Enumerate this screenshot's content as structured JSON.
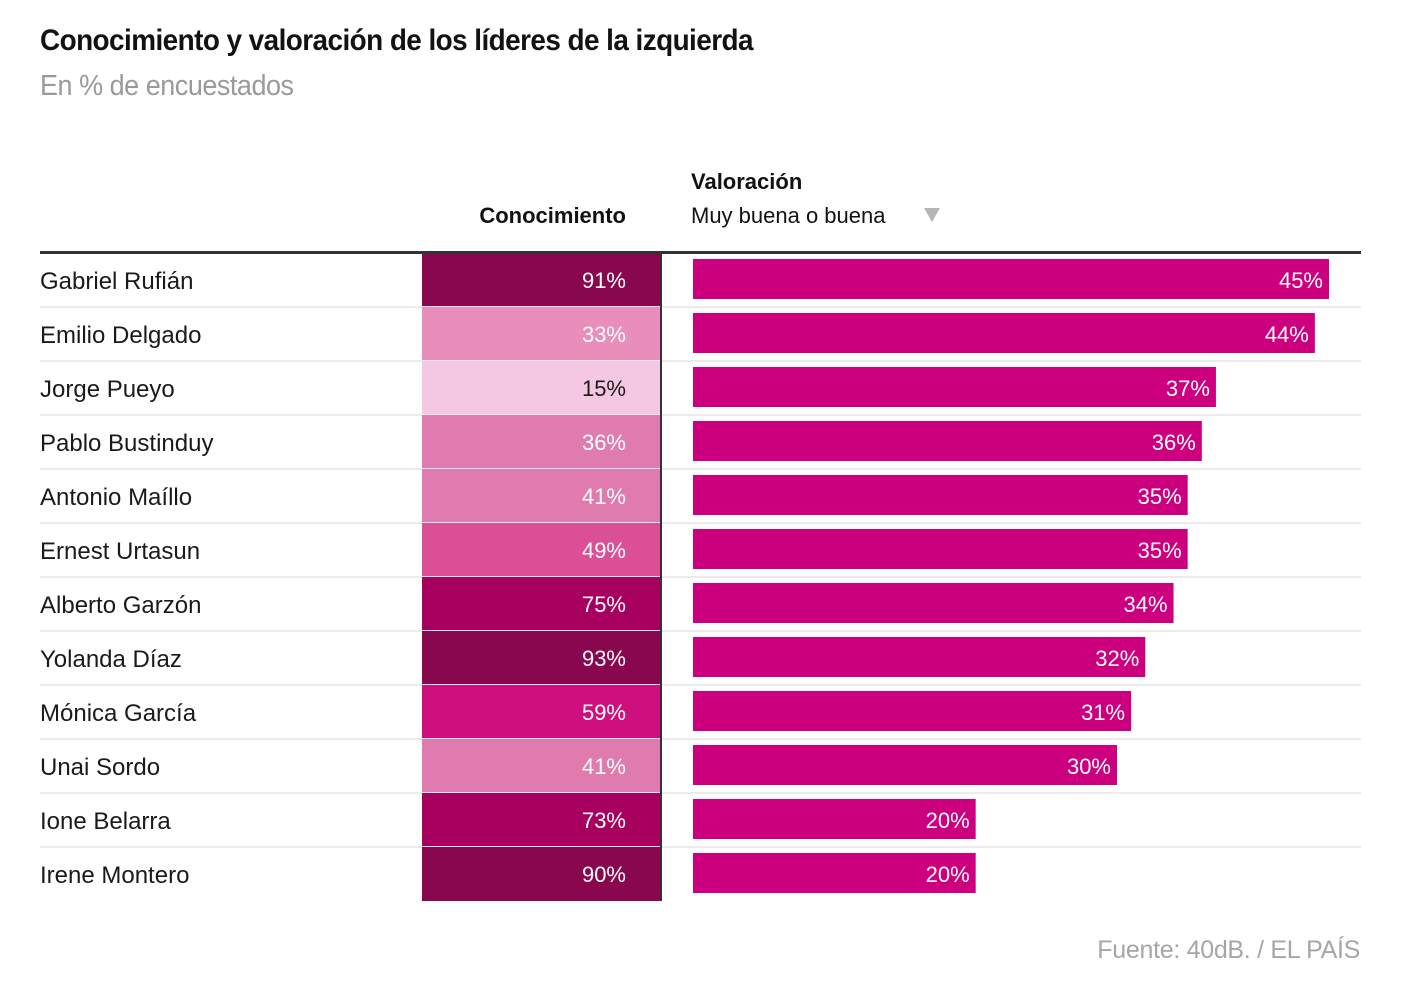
{
  "header": {
    "title": "Conocimiento y valoración de los líderes de la izquierda",
    "subtitle": "En % de encuestados"
  },
  "columns": {
    "knowledge_label": "Conocimiento",
    "rating_label": "Valoración",
    "rating_sublabel": "Muy buena o buena",
    "sort_icon": "triangle-down-icon"
  },
  "footer": {
    "source": "Fuente: 40dB. / EL PAÍS"
  },
  "colors": {
    "bar": "#cc007f",
    "rule": "#333333",
    "row_divider": "#ebebeb",
    "heat_scale": [
      "#f4c8e3",
      "#e98dbb",
      "#e07bb0",
      "#db4f97",
      "#cf0f7e",
      "#a8005f",
      "#88074f"
    ]
  },
  "chart_data": {
    "type": "table",
    "title": "Conocimiento y valoración de los líderes de la izquierda",
    "subtitle": "En % de encuestados",
    "columns": [
      "Conocimiento",
      "Valoración: Muy buena o buena"
    ],
    "sort": {
      "column": "Valoración: Muy buena o buena",
      "order": "descending"
    },
    "rows": [
      {
        "name": "Gabriel Rufián",
        "knowledge": 91,
        "knowledge_label": "91%",
        "rating": 45,
        "rating_label": "45%"
      },
      {
        "name": "Emilio Delgado",
        "knowledge": 33,
        "knowledge_label": "33%",
        "rating": 44,
        "rating_label": "44%"
      },
      {
        "name": "Jorge Pueyo",
        "knowledge": 15,
        "knowledge_label": "15%",
        "rating": 37,
        "rating_label": "37%"
      },
      {
        "name": "Pablo Bustinduy",
        "knowledge": 36,
        "knowledge_label": "36%",
        "rating": 36,
        "rating_label": "36%"
      },
      {
        "name": "Antonio Maíllo",
        "knowledge": 41,
        "knowledge_label": "41%",
        "rating": 35,
        "rating_label": "35%"
      },
      {
        "name": "Ernest Urtasun",
        "knowledge": 49,
        "knowledge_label": "49%",
        "rating": 35,
        "rating_label": "35%"
      },
      {
        "name": "Alberto Garzón",
        "knowledge": 75,
        "knowledge_label": "75%",
        "rating": 34,
        "rating_label": "34%"
      },
      {
        "name": "Yolanda Díaz",
        "knowledge": 93,
        "knowledge_label": "93%",
        "rating": 32,
        "rating_label": "32%"
      },
      {
        "name": "Mónica García",
        "knowledge": 59,
        "knowledge_label": "59%",
        "rating": 31,
        "rating_label": "31%"
      },
      {
        "name": "Unai Sordo",
        "knowledge": 41,
        "knowledge_label": "41%",
        "rating": 30,
        "rating_label": "30%"
      },
      {
        "name": "Ione Belarra",
        "knowledge": 73,
        "knowledge_label": "73%",
        "rating": 20,
        "rating_label": "20%"
      },
      {
        "name": "Irene Montero",
        "knowledge": 90,
        "knowledge_label": "90%",
        "rating": 20,
        "rating_label": "20%"
      }
    ],
    "rating_axis": {
      "min": 0,
      "max": 45
    },
    "grid": false,
    "legend": "none"
  }
}
